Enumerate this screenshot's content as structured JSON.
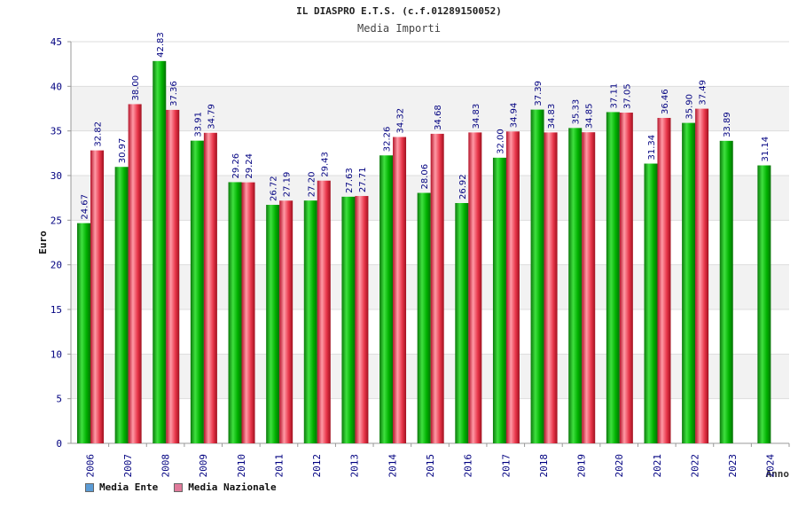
{
  "header": {
    "title": "IL DIASPRO E.T.S. (c.f.01289150052)",
    "subtitle": "Media Importi"
  },
  "chart_data": {
    "type": "bar",
    "title": "IL DIASPRO E.T.S. (c.f.01289150052)",
    "subtitle": "Media Importi",
    "xlabel": "Anno",
    "ylabel": "Euro",
    "ylim": [
      0,
      45
    ],
    "yticks": [
      0,
      5,
      10,
      15,
      20,
      25,
      30,
      35,
      40,
      45
    ],
    "categories": [
      "2006",
      "2007",
      "2008",
      "2009",
      "2010",
      "2011",
      "2012",
      "2013",
      "2014",
      "2015",
      "2016",
      "2017",
      "2018",
      "2019",
      "2020",
      "2021",
      "2022",
      "2023",
      "2024"
    ],
    "series": [
      {
        "name": "Media Ente",
        "values": [
          24.67,
          30.97,
          42.83,
          33.91,
          29.26,
          26.72,
          27.2,
          27.63,
          32.26,
          28.06,
          26.92,
          32.0,
          37.39,
          35.33,
          37.11,
          31.34,
          35.9,
          33.89,
          31.14
        ],
        "labels": [
          "24.67",
          "30.97",
          "42.83",
          "33.91",
          "29.26",
          "26.72",
          "27.20",
          "27.63",
          "32.26",
          "28.06",
          "26.92",
          "32.00",
          "37.39",
          "35.33",
          "37.11",
          "31.34",
          "35.90",
          "33.89",
          "31.14"
        ]
      },
      {
        "name": "Media Nazionale",
        "values": [
          32.82,
          38.0,
          37.36,
          34.79,
          29.24,
          27.19,
          29.43,
          27.71,
          34.32,
          34.68,
          34.83,
          34.94,
          34.83,
          34.85,
          37.05,
          36.46,
          37.49,
          null,
          null
        ],
        "labels": [
          "32.82",
          "38.00",
          "37.36",
          "34.79",
          "29.24",
          "27.19",
          "29.43",
          "27.71",
          "34.32",
          "34.68",
          "34.83",
          "34.94",
          "34.83",
          "34.85",
          "37.05",
          "36.46",
          "37.49",
          "",
          ""
        ]
      }
    ],
    "grid": true,
    "legend_position": "bottom-left"
  },
  "legend": {
    "items": [
      {
        "label": "Media Ente",
        "color": "#5b9bd5"
      },
      {
        "label": "Media Nazionale",
        "color": "#e07a9a"
      }
    ]
  },
  "colors": {
    "ente": "#00b000",
    "nazionale": "#e8364a",
    "axis_text": "#000080",
    "label_text": "#000080"
  }
}
